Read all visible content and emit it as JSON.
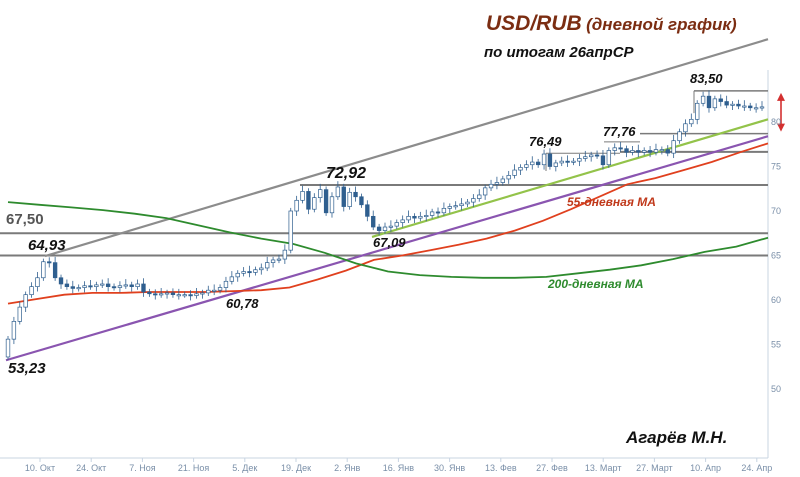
{
  "title": "USD/RUB",
  "title_suffix": "(дневной график)",
  "subtitle": "по итогам 26апрСР",
  "author": "Агарёв М.Н.",
  "colors": {
    "title": "#7b2d12",
    "candle_up": "#ffffff",
    "candle_down": "#2f5f8f",
    "wick": "#2f5f8f",
    "ma55": "#e0401e",
    "ma200": "#2e8b2e",
    "level_lines": "#7a7a7a",
    "channel_upper": "#8c8c8c",
    "trend_purple": "#8a55b0",
    "trend_lightgreen": "#93c34a",
    "arrow": "#d33030"
  },
  "chart_data": {
    "type": "candlestick",
    "x_ticks": [
      "10. Окт",
      "24. Окт",
      "7. Ноя",
      "21. Ноя",
      "5. Дек",
      "19. Дек",
      "2. Янв",
      "16. Янв",
      "30. Янв",
      "13. Фев",
      "27. Фев",
      "13. Март",
      "27. Март",
      "10. Апр",
      "24. Апр"
    ],
    "y_ticks": [
      50,
      55,
      60,
      65,
      70,
      75,
      80
    ],
    "ylim": [
      48,
      88
    ],
    "close": [
      55.6,
      57.6,
      59.2,
      60.6,
      61.5,
      62.5,
      64.3,
      64.2,
      62.5,
      61.8,
      61.5,
      61.3,
      61.4,
      61.6,
      61.5,
      61.7,
      61.8,
      61.5,
      61.4,
      61.6,
      61.7,
      61.5,
      61.8,
      60.9,
      60.7,
      60.6,
      60.7,
      60.8,
      60.6,
      60.6,
      60.6,
      60.5,
      60.7,
      60.8,
      61.1,
      61.1,
      61.4,
      62.1,
      62.6,
      63.0,
      63.2,
      63.1,
      63.4,
      63.6,
      64.2,
      64.5,
      64.6,
      65.6,
      70.0,
      71.2,
      72.2,
      70.2,
      71.5,
      72.4,
      69.8,
      71.6,
      72.7,
      70.5,
      72.1,
      71.6,
      70.7,
      69.4,
      68.2,
      67.8,
      68.2,
      68.3,
      68.7,
      69.0,
      69.4,
      69.2,
      69.4,
      69.5,
      69.9,
      69.8,
      70.3,
      70.5,
      70.6,
      70.8,
      71.0,
      71.4,
      71.8,
      72.6,
      73.0,
      73.2,
      73.6,
      74.0,
      74.6,
      74.9,
      75.2,
      75.5,
      75.2,
      76.4,
      75.0,
      75.4,
      75.6,
      75.5,
      75.6,
      75.9,
      76.1,
      76.3,
      76.2,
      75.2,
      76.8,
      77.1,
      77.0,
      76.6,
      76.8,
      76.6,
      76.8,
      76.6,
      76.9,
      76.9,
      76.5,
      77.9,
      78.9,
      79.8,
      80.3,
      82.1,
      82.9,
      81.6,
      82.6,
      82.3,
      81.9,
      82.0,
      81.8,
      81.8,
      81.6,
      81.6,
      81.7
    ],
    "series": [
      {
        "name": "55-дневная МА",
        "values": [
          59.6,
          60.1,
          60.6,
          60.8,
          60.8,
          60.9,
          60.9,
          60.9,
          61.0,
          61.1,
          61.4,
          62.3,
          63.3,
          64.5,
          65.0,
          65.6,
          66.2,
          66.9,
          67.8,
          68.9,
          70.2,
          71.6,
          73.0,
          73.7,
          74.6,
          75.5,
          76.6,
          77.6
        ]
      },
      {
        "name": "200-дневная МА",
        "values": [
          71.0,
          70.7,
          70.4,
          70.1,
          69.7,
          69.2,
          68.4,
          67.6,
          66.9,
          66.3,
          65.3,
          64.1,
          63.2,
          62.8,
          62.6,
          62.5,
          62.5,
          62.6,
          63.0,
          63.4,
          63.9,
          64.6,
          65.4,
          66.0,
          67.0
        ]
      }
    ],
    "levels": [
      67.5,
      65.0,
      72.92,
      77.76,
      78.7,
      83.5
    ],
    "annotations": [
      {
        "text": "53,23",
        "value": 53.23
      },
      {
        "text": "64,93",
        "value": 64.93
      },
      {
        "text": "67,50",
        "value": 67.5
      },
      {
        "text": "60,78",
        "value": 60.78
      },
      {
        "text": "72,92",
        "value": 72.92
      },
      {
        "text": "67,09",
        "value": 67.09
      },
      {
        "text": "76,49",
        "value": 76.49
      },
      {
        "text": "77,76",
        "value": 77.76
      },
      {
        "text": "83,50",
        "value": 83.5
      }
    ],
    "ma_labels": [
      "55-дневная МА",
      "200-дневная МА"
    ],
    "grid": false
  }
}
